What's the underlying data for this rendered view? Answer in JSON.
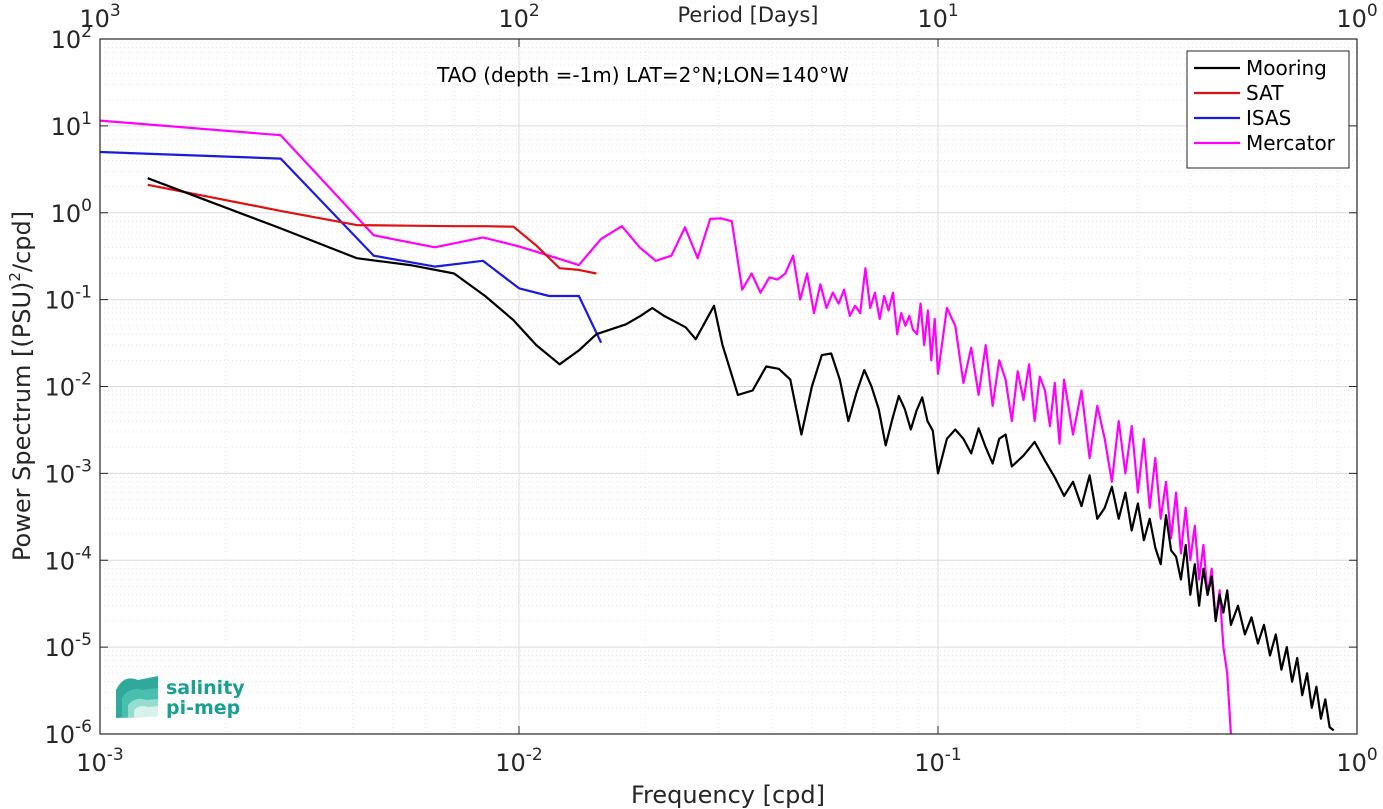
{
  "chart_data": {
    "type": "line",
    "title": "TAO (depth =-1m) LAT=2°N;LON=140°W",
    "xlabel": "Frequency [cpd]",
    "ylabel": "Power Spectrum [(PSU)²/cpd]",
    "ylabel_parts": {
      "base": "Power Spectrum [(PSU)",
      "sup": "2",
      "tail": "/cpd]"
    },
    "top_xlabel": "Period [Days]",
    "xscale": "log",
    "yscale": "log",
    "xlim": [
      0.001,
      1
    ],
    "ylim": [
      1e-06,
      100
    ],
    "grid": true,
    "minor_grid": true,
    "legend_position": "top-right",
    "x_ticks": [
      0.001,
      0.01,
      0.1,
      1
    ],
    "x_tick_labels": [
      {
        "base": "10",
        "exp": "-3"
      },
      {
        "base": "10",
        "exp": "-2"
      },
      {
        "base": "10",
        "exp": "-1"
      },
      {
        "base": "10",
        "exp": "0"
      }
    ],
    "top_x_ticks": [
      0.001,
      0.01,
      0.1,
      1
    ],
    "top_x_tick_labels": [
      {
        "base": "10",
        "exp": "3"
      },
      {
        "base": "10",
        "exp": "2"
      },
      {
        "base": "10",
        "exp": "1"
      },
      {
        "base": "10",
        "exp": "0"
      }
    ],
    "y_ticks": [
      1e-06,
      1e-05,
      0.0001,
      0.001,
      0.01,
      0.1,
      1,
      10,
      100
    ],
    "y_tick_labels": [
      {
        "base": "10",
        "exp": "-6"
      },
      {
        "base": "10",
        "exp": "-5"
      },
      {
        "base": "10",
        "exp": "-4"
      },
      {
        "base": "10",
        "exp": "-3"
      },
      {
        "base": "10",
        "exp": "-2"
      },
      {
        "base": "10",
        "exp": "-1"
      },
      {
        "base": "10",
        "exp": "0"
      },
      {
        "base": "10",
        "exp": "1"
      },
      {
        "base": "10",
        "exp": "2"
      }
    ],
    "series": [
      {
        "name": "Mooring",
        "color": "#000000",
        "x": [
          0.0013,
          0.0027,
          0.0041,
          0.0055,
          0.007,
          0.0083,
          0.0097,
          0.011,
          0.0125,
          0.0139,
          0.0153,
          0.018,
          0.0195,
          0.0208,
          0.0222,
          0.025,
          0.0264,
          0.0292,
          0.0306,
          0.0333,
          0.0361,
          0.0389,
          0.0417,
          0.0444,
          0.0472,
          0.05,
          0.0528,
          0.0556,
          0.0583,
          0.0611,
          0.0639,
          0.0667,
          0.0694,
          0.0722,
          0.075,
          0.0778,
          0.0806,
          0.0833,
          0.0861,
          0.0889,
          0.0917,
          0.0944,
          0.0972,
          0.1,
          0.105,
          0.11,
          0.115,
          0.12,
          0.125,
          0.13,
          0.135,
          0.14,
          0.145,
          0.15,
          0.16,
          0.17,
          0.18,
          0.19,
          0.2,
          0.21,
          0.22,
          0.23,
          0.24,
          0.25,
          0.26,
          0.27,
          0.28,
          0.29,
          0.3,
          0.31,
          0.32,
          0.33,
          0.34,
          0.35,
          0.36,
          0.37,
          0.38,
          0.39,
          0.4,
          0.41,
          0.42,
          0.43,
          0.44,
          0.45,
          0.46,
          0.47,
          0.48,
          0.49,
          0.5,
          0.52,
          0.54,
          0.56,
          0.58,
          0.6,
          0.62,
          0.64,
          0.66,
          0.68,
          0.7,
          0.72,
          0.74,
          0.76,
          0.78,
          0.8,
          0.82,
          0.84,
          0.86,
          0.88
        ],
        "y": [
          2.5,
          0.66,
          0.3,
          0.25,
          0.2,
          0.11,
          0.058,
          0.03,
          0.018,
          0.026,
          0.04,
          0.052,
          0.065,
          0.08,
          0.065,
          0.048,
          0.035,
          0.085,
          0.03,
          0.008,
          0.009,
          0.017,
          0.016,
          0.012,
          0.0028,
          0.01,
          0.023,
          0.024,
          0.012,
          0.004,
          0.0085,
          0.0155,
          0.01,
          0.0055,
          0.0021,
          0.0042,
          0.0078,
          0.0055,
          0.0032,
          0.0053,
          0.0075,
          0.004,
          0.0031,
          0.001,
          0.0025,
          0.0032,
          0.0025,
          0.0017,
          0.0033,
          0.002,
          0.0013,
          0.0025,
          0.0028,
          0.0012,
          0.0016,
          0.0023,
          0.0014,
          0.0009,
          0.00055,
          0.0008,
          0.00042,
          0.00095,
          0.0003,
          0.0004,
          0.0007,
          0.0003,
          0.0006,
          0.00022,
          0.00045,
          0.00017,
          0.0003,
          0.00014,
          9e-05,
          0.00033,
          0.00013,
          0.00011,
          6e-05,
          0.00015,
          4e-05,
          9e-05,
          3e-05,
          8e-05,
          4e-05,
          6.5e-05,
          2e-05,
          4e-05,
          2.5e-05,
          4.5e-05,
          1.8e-05,
          3e-05,
          1.4e-05,
          2.2e-05,
          1.1e-05,
          1.8e-05,
          8e-06,
          1.4e-05,
          5.5e-06,
          1e-05,
          4e-06,
          7.5e-06,
          2.8e-06,
          5e-06,
          2e-06,
          3.5e-06,
          1.5e-06,
          2.5e-06,
          1.2e-06,
          1.1e-06
        ]
      },
      {
        "name": "SAT",
        "color": "#e01010",
        "x": [
          0.0013,
          0.0027,
          0.0041,
          0.0055,
          0.007,
          0.0083,
          0.0097,
          0.011,
          0.0125,
          0.0139,
          0.0153
        ],
        "y": [
          2.1,
          1.05,
          0.72,
          0.71,
          0.7,
          0.7,
          0.69,
          0.42,
          0.23,
          0.22,
          0.2
        ]
      },
      {
        "name": "ISAS",
        "color": "#1a1ae0",
        "x": [
          0.001,
          0.0027,
          0.0045,
          0.0063,
          0.0082,
          0.01,
          0.0118,
          0.0139,
          0.0157
        ],
        "y": [
          5.0,
          4.2,
          0.32,
          0.24,
          0.28,
          0.135,
          0.11,
          0.11,
          0.032
        ]
      },
      {
        "name": "Mercator",
        "color": "#ff00ff",
        "x": [
          0.001,
          0.0027,
          0.0045,
          0.0063,
          0.0082,
          0.01,
          0.0118,
          0.0139,
          0.0157,
          0.0176,
          0.0194,
          0.0212,
          0.0231,
          0.0249,
          0.0267,
          0.0286,
          0.0304,
          0.0322,
          0.0341,
          0.0359,
          0.0377,
          0.0396,
          0.0414,
          0.0432,
          0.0451,
          0.0469,
          0.0487,
          0.0506,
          0.0524,
          0.0542,
          0.0561,
          0.0579,
          0.0597,
          0.0616,
          0.0634,
          0.0652,
          0.0671,
          0.0689,
          0.0707,
          0.0726,
          0.0744,
          0.0762,
          0.0781,
          0.0799,
          0.0817,
          0.0836,
          0.0854,
          0.0872,
          0.0891,
          0.0909,
          0.0927,
          0.0946,
          0.0964,
          0.0982,
          0.1,
          0.105,
          0.11,
          0.115,
          0.12,
          0.125,
          0.13,
          0.135,
          0.14,
          0.145,
          0.15,
          0.155,
          0.16,
          0.165,
          0.17,
          0.175,
          0.18,
          0.185,
          0.19,
          0.195,
          0.2,
          0.21,
          0.22,
          0.23,
          0.24,
          0.25,
          0.26,
          0.27,
          0.28,
          0.29,
          0.3,
          0.31,
          0.32,
          0.33,
          0.34,
          0.35,
          0.36,
          0.37,
          0.38,
          0.39,
          0.4,
          0.41,
          0.42,
          0.43,
          0.44,
          0.45,
          0.46,
          0.47,
          0.48,
          0.49,
          0.5
        ],
        "y": [
          11.5,
          7.8,
          0.55,
          0.4,
          0.52,
          0.41,
          0.32,
          0.25,
          0.5,
          0.7,
          0.4,
          0.28,
          0.32,
          0.68,
          0.3,
          0.85,
          0.86,
          0.8,
          0.13,
          0.2,
          0.12,
          0.18,
          0.17,
          0.2,
          0.32,
          0.1,
          0.2,
          0.07,
          0.15,
          0.08,
          0.12,
          0.09,
          0.13,
          0.065,
          0.085,
          0.07,
          0.23,
          0.08,
          0.12,
          0.06,
          0.11,
          0.075,
          0.12,
          0.04,
          0.07,
          0.05,
          0.065,
          0.045,
          0.04,
          0.09,
          0.03,
          0.075,
          0.02,
          0.06,
          0.014,
          0.08,
          0.05,
          0.011,
          0.028,
          0.008,
          0.03,
          0.006,
          0.02,
          0.012,
          0.004,
          0.015,
          0.007,
          0.018,
          0.004,
          0.013,
          0.009,
          0.0035,
          0.011,
          0.0022,
          0.012,
          0.0028,
          0.009,
          0.0015,
          0.006,
          0.0025,
          0.0008,
          0.004,
          0.001,
          0.0035,
          0.0006,
          0.0025,
          0.0004,
          0.0015,
          0.0003,
          0.0008,
          0.00018,
          0.0006,
          0.00012,
          0.0004,
          0.0001,
          0.00025,
          6e-05,
          0.00015,
          4e-05,
          8e-05,
          2e-05,
          4.5e-05,
          1e-05,
          5e-06,
          1e-06
        ]
      }
    ]
  },
  "logo": {
    "line1": "salinity",
    "line2": "pi-mep",
    "color": "#1aa091"
  }
}
